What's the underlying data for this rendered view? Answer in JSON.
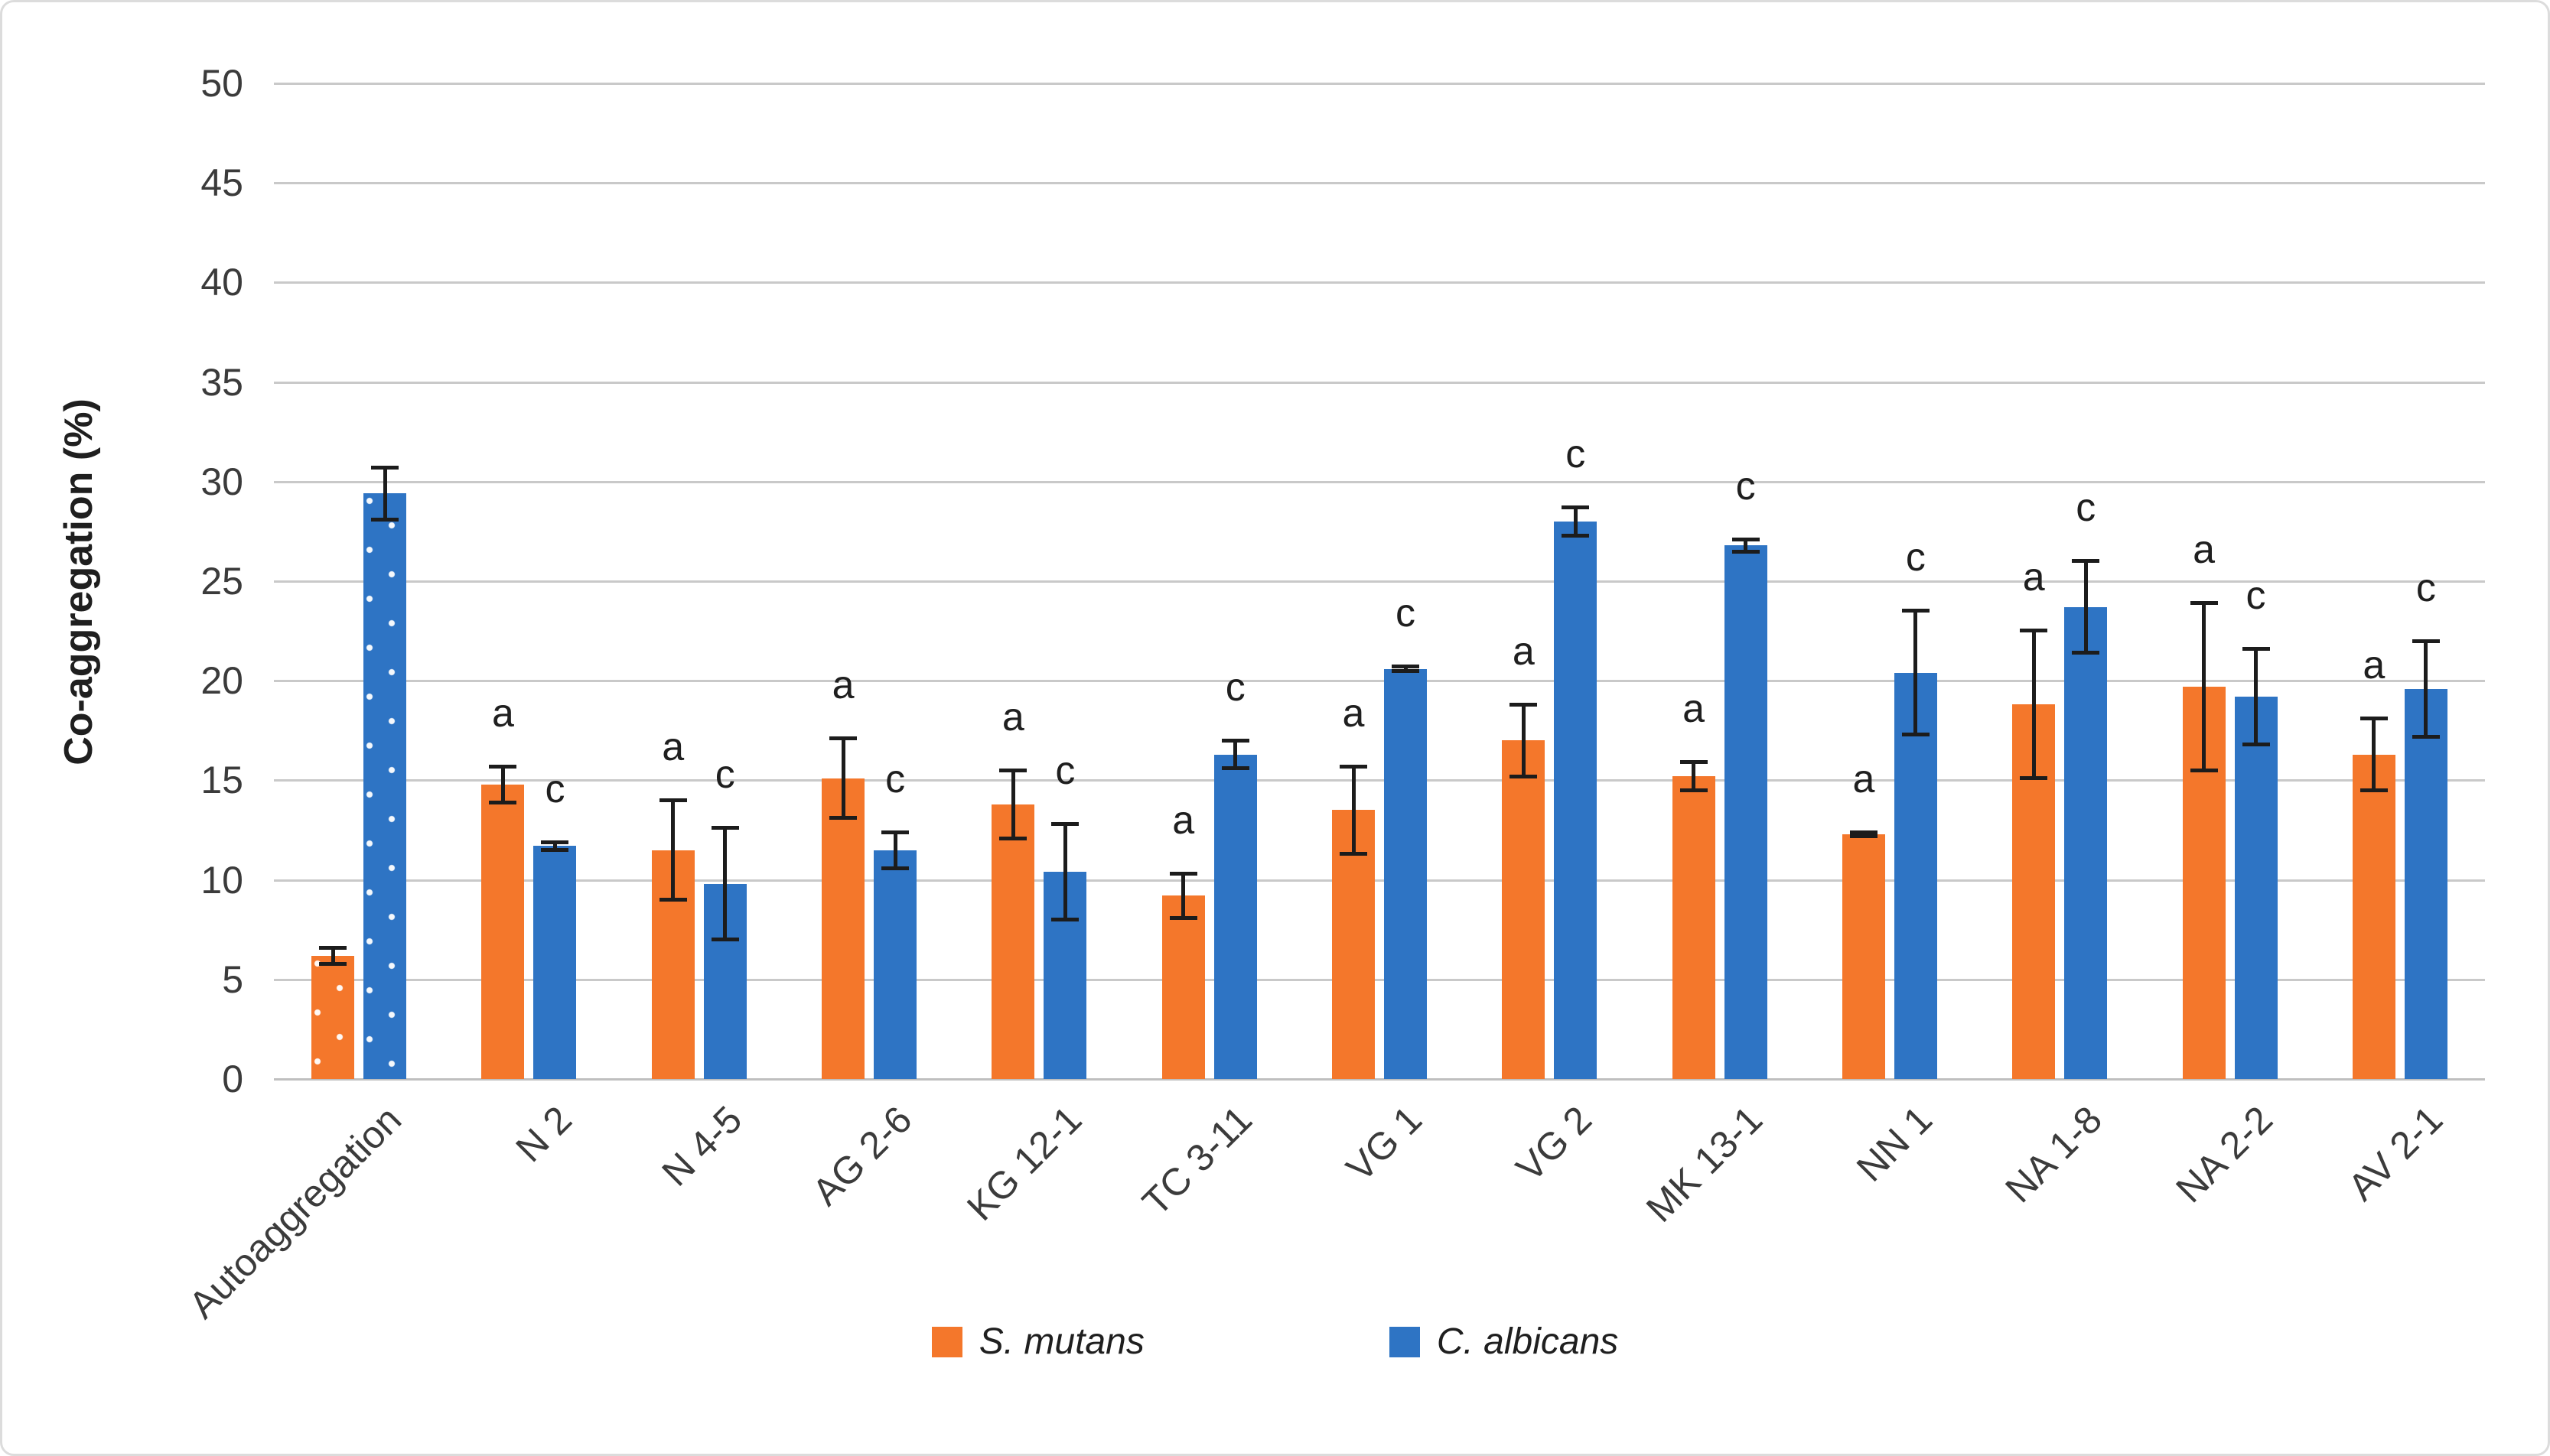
{
  "chart_data": {
    "type": "bar",
    "title": "",
    "xlabel": "",
    "ylabel": "Co-aggregation (%)",
    "ylim": [
      0,
      50
    ],
    "ytick_step": 5,
    "y_ticks": [
      0,
      5,
      10,
      15,
      20,
      25,
      30,
      35,
      40,
      45,
      50
    ],
    "grid": true,
    "legend_position": "bottom",
    "grid_color": "#c9c9c9",
    "axis_color": "#bfbfbf",
    "error_bar_color": "#1c1c1c",
    "categories": [
      "Autoaggregation",
      "N 2",
      "N 4-5",
      "AG 2-6",
      "KG 12-1",
      "TC 3-11",
      "VG 1",
      "VG 2",
      "MK 13-1",
      "NN 1",
      "NA 1-8",
      "NA 2-2",
      "AV 2-1"
    ],
    "series": [
      {
        "name": "S. mutans",
        "color": "#f4772b",
        "values": [
          6.2,
          14.8,
          11.5,
          15.1,
          13.8,
          9.2,
          13.5,
          17.0,
          15.2,
          12.3,
          18.8,
          19.7,
          16.3
        ],
        "errors": [
          0.5,
          1.0,
          2.6,
          2.1,
          1.8,
          1.2,
          2.3,
          1.9,
          0.8,
          0.2,
          3.8,
          4.3,
          1.9
        ],
        "letters": [
          "",
          "a",
          "a",
          "a",
          "a",
          "a",
          "a",
          "a",
          "a",
          "a",
          "a",
          "a",
          "a"
        ],
        "patterned": [
          true,
          false,
          false,
          false,
          false,
          false,
          false,
          false,
          false,
          false,
          false,
          false,
          false
        ]
      },
      {
        "name": "C. albicans",
        "color": "#2e74c4",
        "values": [
          29.4,
          11.7,
          9.8,
          11.5,
          10.4,
          16.3,
          20.6,
          28.0,
          26.8,
          20.4,
          23.7,
          19.2,
          19.6
        ],
        "errors": [
          1.4,
          0.3,
          2.9,
          1.0,
          2.5,
          0.8,
          0.2,
          0.8,
          0.4,
          3.2,
          2.4,
          2.5,
          2.5
        ],
        "letters": [
          "",
          "c",
          "c",
          "c",
          "c",
          "c",
          "c",
          "c",
          "c",
          "c",
          "c",
          "c",
          "c"
        ],
        "patterned": [
          true,
          false,
          false,
          false,
          false,
          false,
          false,
          false,
          false,
          false,
          false,
          false,
          false
        ]
      }
    ]
  }
}
